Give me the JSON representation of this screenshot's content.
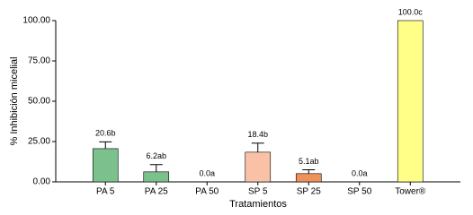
{
  "chart_data": {
    "type": "bar",
    "categories": [
      "PA 5",
      "PA 25",
      "PA 50",
      "SP 5",
      "SP 25",
      "SP 50",
      "Tower®"
    ],
    "values": [
      20.6,
      6.2,
      0.0,
      18.4,
      5.1,
      0.0,
      100.0
    ],
    "value_labels": [
      "20.6b",
      "6.2ab",
      "0.0a",
      "18.4b",
      "5.1ab",
      "0.0a",
      "100.0c"
    ],
    "errors": [
      4.2,
      4.5,
      null,
      5.6,
      2.4,
      null,
      null
    ],
    "colors": [
      "#7cc08e",
      "#7cc08e",
      "#7cc08e",
      "#f9c2a6",
      "#f0915a",
      "#f0915a",
      "#ffff88"
    ],
    "xlabel": "Tratamientos",
    "ylabel": "% Inhibición micelial",
    "ylim": [
      0,
      100
    ],
    "yticks": [
      {
        "value": 0,
        "label": "0.00"
      },
      {
        "value": 25,
        "label": "25.00"
      },
      {
        "value": 50,
        "label": "50.00"
      },
      {
        "value": 75,
        "label": "75.00"
      },
      {
        "value": 100,
        "label": "100.00"
      }
    ]
  }
}
